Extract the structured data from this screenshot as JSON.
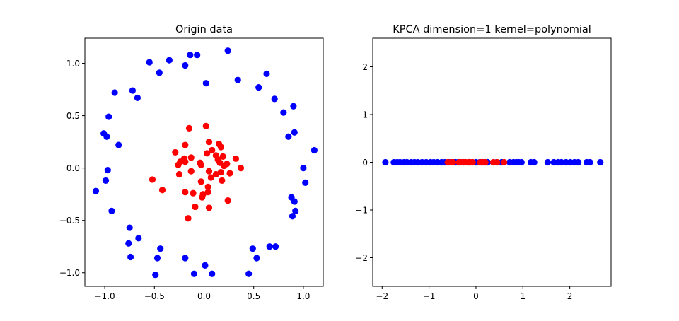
{
  "chart_data": [
    {
      "type": "scatter",
      "title": "Origin data",
      "xlabel": "",
      "ylabel": "",
      "xlim": [
        -1.2,
        1.2
      ],
      "ylim": [
        -1.13,
        1.24
      ],
      "xticks": [
        -1.0,
        -0.5,
        0.0,
        0.5,
        1.0
      ],
      "xtick_labels": [
        "−1.0",
        "−0.5",
        "0.0",
        "0.5",
        "1.0"
      ],
      "yticks": [
        -1.0,
        -0.5,
        0.0,
        0.5,
        1.0
      ],
      "ytick_labels": [
        "−1.0",
        "−0.5",
        "0.0",
        "0.5",
        "1.0"
      ],
      "grid": false,
      "legend": "none",
      "series": [
        {
          "color": "#0000ff",
          "points": [
            [
              0.24,
              1.12
            ],
            [
              -0.14,
              1.08
            ],
            [
              -0.07,
              1.08
            ],
            [
              -0.35,
              1.03
            ],
            [
              -0.55,
              1.01
            ],
            [
              -0.19,
              0.98
            ],
            [
              -0.45,
              0.91
            ],
            [
              0.63,
              0.9
            ],
            [
              0.34,
              0.84
            ],
            [
              0.02,
              0.81
            ],
            [
              0.55,
              0.77
            ],
            [
              -0.72,
              0.74
            ],
            [
              -0.9,
              0.72
            ],
            [
              -0.67,
              0.67
            ],
            [
              0.71,
              0.66
            ],
            [
              0.9,
              0.59
            ],
            [
              -0.96,
              0.49
            ],
            [
              0.8,
              0.53
            ],
            [
              0.91,
              0.34
            ],
            [
              -1.01,
              0.33
            ],
            [
              -0.98,
              0.3
            ],
            [
              0.85,
              0.3
            ],
            [
              -0.86,
              0.22
            ],
            [
              1.11,
              0.17
            ],
            [
              1.0,
              0.0
            ],
            [
              -0.97,
              -0.02
            ],
            [
              -0.99,
              -0.12
            ],
            [
              1.02,
              -0.14
            ],
            [
              -1.09,
              -0.22
            ],
            [
              0.88,
              -0.28
            ],
            [
              0.91,
              -0.32
            ],
            [
              -0.93,
              -0.41
            ],
            [
              0.92,
              -0.41
            ],
            [
              0.89,
              -0.46
            ],
            [
              -0.75,
              -0.57
            ],
            [
              -0.66,
              -0.67
            ],
            [
              -0.76,
              -0.72
            ],
            [
              0.66,
              -0.75
            ],
            [
              0.72,
              -0.75
            ],
            [
              -0.44,
              -0.77
            ],
            [
              0.49,
              -0.77
            ],
            [
              -0.74,
              -0.85
            ],
            [
              -0.47,
              -0.86
            ],
            [
              -0.19,
              -0.86
            ],
            [
              0.53,
              -0.86
            ],
            [
              0.01,
              -0.93
            ],
            [
              -0.49,
              -1.02
            ],
            [
              -0.1,
              -1.01
            ],
            [
              0.08,
              -1.01
            ],
            [
              0.45,
              -1.01
            ]
          ]
        },
        {
          "color": "#ff0000",
          "points": [
            [
              0.02,
              0.4
            ],
            [
              -0.15,
              0.38
            ],
            [
              0.05,
              0.25
            ],
            [
              0.15,
              0.23
            ],
            [
              -0.19,
              0.22
            ],
            [
              0.17,
              0.2
            ],
            [
              0.08,
              0.17
            ],
            [
              -0.29,
              0.15
            ],
            [
              0.03,
              0.14
            ],
            [
              0.12,
              0.12
            ],
            [
              0.19,
              0.11
            ],
            [
              -0.13,
              0.1
            ],
            [
              -0.2,
              0.09
            ],
            [
              0.32,
              0.09
            ],
            [
              0.14,
              0.08
            ],
            [
              -0.24,
              0.06
            ],
            [
              -0.19,
              0.06
            ],
            [
              -0.04,
              0.05
            ],
            [
              0.16,
              0.05
            ],
            [
              0.23,
              0.04
            ],
            [
              -0.26,
              0.03
            ],
            [
              -0.03,
              0.03
            ],
            [
              0.37,
              0.0
            ],
            [
              0.2,
              0.02
            ],
            [
              0.26,
              -0.05
            ],
            [
              -0.13,
              -0.03
            ],
            [
              0.05,
              -0.03
            ],
            [
              0.17,
              -0.04
            ],
            [
              -0.25,
              -0.06
            ],
            [
              0.12,
              -0.06
            ],
            [
              0.07,
              -0.09
            ],
            [
              0.18,
              -0.12
            ],
            [
              -0.52,
              -0.11
            ],
            [
              -0.03,
              -0.13
            ],
            [
              0.04,
              -0.18
            ],
            [
              -0.42,
              -0.21
            ],
            [
              -0.19,
              -0.23
            ],
            [
              -0.11,
              -0.24
            ],
            [
              0.04,
              -0.23
            ],
            [
              -0.01,
              -0.25
            ],
            [
              -0.02,
              -0.28
            ],
            [
              0.24,
              -0.31
            ],
            [
              -0.09,
              -0.37
            ],
            [
              0.05,
              -0.38
            ],
            [
              -0.16,
              -0.48
            ]
          ]
        }
      ]
    },
    {
      "type": "scatter",
      "title": "KPCA dimension=1 kernel=polynomial",
      "xlabel": "",
      "ylabel": "",
      "xlim": [
        -2.2,
        2.88
      ],
      "ylim": [
        -2.6,
        2.6
      ],
      "xticks": [
        -2,
        -1,
        0,
        1,
        2
      ],
      "xtick_labels": [
        "−2",
        "−1",
        "0",
        "1",
        "2"
      ],
      "yticks": [
        -2,
        -1,
        0,
        1,
        2
      ],
      "ytick_labels": [
        "−2",
        "−1",
        "0",
        "1",
        "2"
      ],
      "grid": false,
      "legend": "none",
      "series": [
        {
          "color": "#0000ff",
          "points": [
            [
              -1.93,
              0
            ],
            [
              -1.75,
              0
            ],
            [
              -1.68,
              0
            ],
            [
              -1.62,
              0
            ],
            [
              -1.53,
              0
            ],
            [
              -1.47,
              0
            ],
            [
              -1.38,
              0
            ],
            [
              -1.31,
              0
            ],
            [
              -1.24,
              0
            ],
            [
              -1.15,
              0
            ],
            [
              -1.06,
              0
            ],
            [
              -0.97,
              0
            ],
            [
              -0.9,
              0
            ],
            [
              -0.82,
              0
            ],
            [
              -0.73,
              0
            ],
            [
              -0.66,
              0
            ],
            [
              -0.58,
              0
            ],
            [
              -0.45,
              0
            ],
            [
              -0.44,
              0
            ],
            [
              -0.38,
              0
            ],
            [
              -0.27,
              0
            ],
            [
              -0.15,
              0
            ],
            [
              0.0,
              0
            ],
            [
              0.08,
              0
            ],
            [
              0.13,
              0
            ],
            [
              0.18,
              0
            ],
            [
              0.25,
              0
            ],
            [
              0.44,
              0
            ],
            [
              0.55,
              0
            ],
            [
              0.72,
              0
            ],
            [
              0.8,
              0
            ],
            [
              0.86,
              0
            ],
            [
              0.91,
              0
            ],
            [
              0.97,
              0
            ],
            [
              1.17,
              0
            ],
            [
              1.24,
              0
            ],
            [
              1.53,
              0
            ],
            [
              1.66,
              0
            ],
            [
              1.75,
              0
            ],
            [
              1.82,
              0
            ],
            [
              1.92,
              0
            ],
            [
              2.01,
              0
            ],
            [
              2.1,
              0
            ],
            [
              2.18,
              0
            ],
            [
              2.36,
              0
            ],
            [
              2.43,
              0
            ],
            [
              2.65,
              0
            ]
          ]
        },
        {
          "color": "#ff0000",
          "points": [
            [
              -0.6,
              0
            ],
            [
              -0.53,
              0
            ],
            [
              -0.49,
              0
            ],
            [
              -0.36,
              0
            ],
            [
              -0.32,
              0
            ],
            [
              -0.27,
              0
            ],
            [
              -0.22,
              0
            ],
            [
              -0.16,
              0
            ],
            [
              -0.12,
              0
            ],
            [
              -0.07,
              0
            ],
            [
              0.09,
              0
            ],
            [
              0.14,
              0
            ],
            [
              0.2,
              0
            ],
            [
              0.37,
              0
            ],
            [
              0.45,
              0
            ],
            [
              0.6,
              0
            ]
          ]
        }
      ]
    }
  ]
}
